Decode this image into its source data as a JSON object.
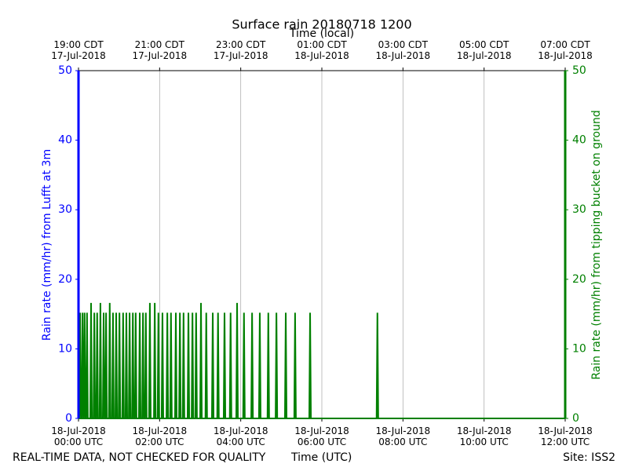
{
  "chart_data": {
    "type": "line",
    "title": "Surface rain 20180718 1200",
    "x_label": "Time (UTC)",
    "x2_label": "Time (local)",
    "y_label": "Rain rate (mm/hr) from Lufft at 3m",
    "y2_label": "Rain rate (mm/hr) from tipping bucket on ground",
    "footer_left": "REAL-TIME DATA, NOT CHECKED FOR QUALITY",
    "footer_right": "Site: ISS2",
    "grid": "x",
    "y_color": "#0000ff",
    "y2_color": "#008000",
    "xlim": [
      0,
      12
    ],
    "xticks": [
      {
        "value": 0,
        "label": "18-Jul-2018\n00:00 UTC"
      },
      {
        "value": 2,
        "label": "18-Jul-2018\n02:00 UTC"
      },
      {
        "value": 4,
        "label": "18-Jul-2018\n04:00 UTC"
      },
      {
        "value": 6,
        "label": "18-Jul-2018\n06:00 UTC"
      },
      {
        "value": 8,
        "label": "18-Jul-2018\n08:00 UTC"
      },
      {
        "value": 10,
        "label": "18-Jul-2018\n10:00 UTC"
      },
      {
        "value": 12,
        "label": "18-Jul-2018\n12:00 UTC"
      }
    ],
    "x2ticks": [
      {
        "value": 0,
        "label": "19:00 CDT\n17-Jul-2018"
      },
      {
        "value": 2,
        "label": "21:00 CDT\n17-Jul-2018"
      },
      {
        "value": 4,
        "label": "23:00 CDT\n17-Jul-2018"
      },
      {
        "value": 6,
        "label": "01:00 CDT\n18-Jul-2018"
      },
      {
        "value": 8,
        "label": "03:00 CDT\n18-Jul-2018"
      },
      {
        "value": 10,
        "label": "05:00 CDT\n18-Jul-2018"
      },
      {
        "value": 12,
        "label": "07:00 CDT\n18-Jul-2018"
      }
    ],
    "ylim": [
      0,
      50
    ],
    "yticks": [
      0,
      10,
      20,
      30,
      40,
      50
    ],
    "y2lim": [
      0,
      50
    ],
    "y2ticks": [
      0,
      10,
      20,
      30,
      40,
      50
    ],
    "x": [
      0,
      0.02,
      0.04,
      0.06,
      0.08,
      0.1,
      0.12,
      0.13,
      0.15,
      0.17,
      0.19,
      0.21,
      0.23,
      0.29,
      0.31,
      0.33,
      0.37,
      0.39,
      0.41,
      0.44,
      0.46,
      0.48,
      0.52,
      0.54,
      0.56,
      0.6,
      0.62,
      0.64,
      0.66,
      0.68,
      0.7,
      0.75,
      0.77,
      0.79,
      0.83,
      0.85,
      0.87,
      0.91,
      0.93,
      0.95,
      0.99,
      1.01,
      1.03,
      1.08,
      1.1,
      1.12,
      1.16,
      1.18,
      1.2,
      1.24,
      1.26,
      1.28,
      1.32,
      1.34,
      1.36,
      1.39,
      1.41,
      1.43,
      1.49,
      1.51,
      1.53,
      1.57,
      1.59,
      1.61,
      1.64,
      1.66,
      1.68,
      1.74,
      1.76,
      1.78,
      1.86,
      1.88,
      1.9,
      1.95,
      1.97,
      1.99,
      2.05,
      2.07,
      2.09,
      2.17,
      2.19,
      2.21,
      2.26,
      2.28,
      2.3,
      2.38,
      2.4,
      2.42,
      2.48,
      2.5,
      2.52,
      2.57,
      2.59,
      2.61,
      2.69,
      2.71,
      2.73,
      2.79,
      2.81,
      2.83,
      2.88,
      2.9,
      2.92,
      3.0,
      3.02,
      3.04,
      3.13,
      3.15,
      3.17,
      3.29,
      3.31,
      3.33,
      3.42,
      3.44,
      3.46,
      3.58,
      3.6,
      3.62,
      3.73,
      3.75,
      3.77,
      3.89,
      3.91,
      3.93,
      4.06,
      4.08,
      4.1,
      4.26,
      4.28,
      4.3,
      4.45,
      4.47,
      4.49,
      4.66,
      4.68,
      4.7,
      4.86,
      4.88,
      4.9,
      5.09,
      5.11,
      5.13,
      5.32,
      5.34,
      5.36,
      5.69,
      5.71,
      5.73,
      7.35,
      7.37,
      7.39,
      12
    ],
    "series": [
      {
        "color": "#008000",
        "axis": "y2",
        "values": [
          0,
          0,
          15.2,
          0,
          0,
          15.2,
          0,
          0,
          15.2,
          0,
          0,
          15.2,
          0,
          0,
          16.6,
          0,
          0,
          15.2,
          0,
          0,
          15.2,
          0,
          0,
          16.6,
          0,
          0,
          15.2,
          0,
          0,
          15.2,
          0,
          0,
          16.6,
          0,
          0,
          15.2,
          0,
          0,
          15.2,
          0,
          0,
          15.2,
          0,
          0,
          15.2,
          0,
          0,
          15.2,
          0,
          0,
          15.2,
          0,
          0,
          15.2,
          0,
          0,
          15.2,
          0,
          0,
          15.2,
          0,
          0,
          15.2,
          0,
          0,
          15.2,
          0,
          0,
          16.6,
          0,
          0,
          16.6,
          0,
          0,
          15.2,
          0,
          0,
          15.2,
          0,
          0,
          15.2,
          0,
          0,
          15.2,
          0,
          0,
          15.2,
          0,
          0,
          15.2,
          0,
          0,
          15.2,
          0,
          0,
          15.2,
          0,
          0,
          15.2,
          0,
          0,
          15.2,
          0,
          0,
          16.6,
          0,
          0,
          15.2,
          0,
          0,
          15.2,
          0,
          0,
          15.2,
          0,
          0,
          15.2,
          0,
          0,
          15.2,
          0,
          0,
          16.6,
          0,
          0,
          15.2,
          0,
          0,
          15.2,
          0,
          0,
          15.2,
          0,
          0,
          15.2,
          0,
          0,
          15.2,
          0,
          0,
          15.2,
          0,
          0,
          15.2,
          0,
          0,
          15.2,
          0,
          0,
          15.2,
          0,
          0
        ]
      }
    ]
  }
}
